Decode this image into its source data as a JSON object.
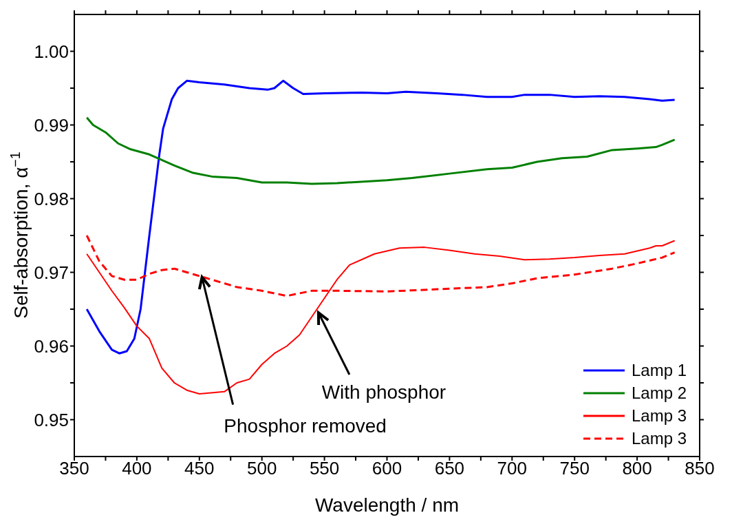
{
  "chart_data": {
    "type": "line",
    "xlabel": "Wavelength / nm",
    "ylabel": "Self-absorption, α$^{−1}$",
    "xlim": [
      350,
      850
    ],
    "xticks": [
      350,
      {
        "value": 375,
        "label": null
      },
      400,
      {
        "value": 425,
        "label": null
      },
      450,
      {
        "value": 475,
        "label": null
      },
      500,
      {
        "value": 525,
        "label": null
      },
      550,
      {
        "value": 575,
        "label": null
      },
      600,
      {
        "value": 625,
        "label": null
      },
      650,
      {
        "value": 675,
        "label": null
      },
      700,
      {
        "value": 725,
        "label": null
      },
      750,
      {
        "value": 775,
        "label": null
      },
      800,
      {
        "value": 825,
        "label": null
      },
      850
    ],
    "ylim": [
      0.945,
      1.005
    ],
    "yticks": [
      {
        "value": 0.95,
        "label": "0.95"
      },
      {
        "value": 0.955,
        "label": null
      },
      {
        "value": 0.96,
        "label": "0.96"
      },
      {
        "value": 0.965,
        "label": null
      },
      {
        "value": 0.97,
        "label": "0.97"
      },
      {
        "value": 0.975,
        "label": null
      },
      {
        "value": 0.98,
        "label": "0.98"
      },
      {
        "value": 0.985,
        "label": null
      },
      {
        "value": 0.99,
        "label": "0.99"
      },
      {
        "value": 0.995,
        "label": null
      },
      {
        "value": 1.0,
        "label": "1.00"
      }
    ],
    "grid": false,
    "legend": "bottom right",
    "marker": "none",
    "series": [
      {
        "name": "Lamp 1",
        "color": "#0000ff",
        "line_style": "solid",
        "x": [
          360,
          370,
          380,
          386,
          392,
          398,
          403,
          410,
          418,
          421,
          428,
          433,
          440,
          450,
          470,
          490,
          505,
          510,
          517,
          525,
          533,
          550,
          580,
          600,
          615,
          640,
          660,
          680,
          700,
          710,
          730,
          750,
          770,
          790,
          810,
          820,
          830
        ],
        "values": [
          0.965,
          0.962,
          0.9595,
          0.959,
          0.9593,
          0.961,
          0.965,
          0.975,
          0.986,
          0.9895,
          0.9935,
          0.995,
          0.996,
          0.9958,
          0.9955,
          0.995,
          0.9948,
          0.995,
          0.996,
          0.995,
          0.9942,
          0.9943,
          0.9944,
          0.9943,
          0.9945,
          0.9943,
          0.9941,
          0.9938,
          0.9938,
          0.9941,
          0.9941,
          0.9938,
          0.9939,
          0.9938,
          0.9935,
          0.9933,
          0.9934
        ]
      },
      {
        "name": "Lamp 2",
        "color": "#008000",
        "line_style": "solid",
        "x": [
          360,
          365,
          375,
          385,
          395,
          410,
          430,
          445,
          460,
          480,
          500,
          520,
          540,
          560,
          600,
          620,
          650,
          680,
          700,
          720,
          740,
          760,
          780,
          800,
          815,
          820,
          830
        ],
        "values": [
          0.991,
          0.99,
          0.989,
          0.9875,
          0.9867,
          0.986,
          0.9845,
          0.9835,
          0.983,
          0.9828,
          0.9822,
          0.9822,
          0.982,
          0.9821,
          0.9825,
          0.9828,
          0.9834,
          0.984,
          0.9842,
          0.985,
          0.9855,
          0.9857,
          0.9866,
          0.9868,
          0.987,
          0.9873,
          0.988
        ]
      },
      {
        "name": "Lamp 3",
        "color": "#ff0000",
        "line_style": "solid",
        "x": [
          360,
          370,
          380,
          390,
          400,
          410,
          420,
          430,
          440,
          450,
          470,
          480,
          490,
          500,
          510,
          520,
          530,
          540,
          550,
          560,
          570,
          590,
          610,
          630,
          650,
          670,
          690,
          710,
          730,
          750,
          770,
          790,
          810,
          815,
          820,
          830
        ],
        "values": [
          0.9725,
          0.97,
          0.9675,
          0.9652,
          0.9627,
          0.961,
          0.957,
          0.955,
          0.954,
          0.9535,
          0.9538,
          0.955,
          0.9555,
          0.9575,
          0.959,
          0.96,
          0.9615,
          0.964,
          0.9665,
          0.969,
          0.971,
          0.9725,
          0.9733,
          0.9734,
          0.973,
          0.9725,
          0.9722,
          0.9717,
          0.9718,
          0.972,
          0.9723,
          0.9725,
          0.9733,
          0.9736,
          0.9736,
          0.9743
        ]
      },
      {
        "name": "Lamp 3",
        "color": "#ff0000",
        "line_style": "dashed",
        "x": [
          360,
          370,
          380,
          390,
          400,
          410,
          420,
          430,
          440,
          460,
          480,
          500,
          520,
          540,
          560,
          600,
          640,
          680,
          700,
          720,
          750,
          780,
          800,
          820,
          830
        ],
        "values": [
          0.975,
          0.9715,
          0.9695,
          0.969,
          0.969,
          0.9698,
          0.9703,
          0.9705,
          0.97,
          0.969,
          0.968,
          0.9675,
          0.9668,
          0.9675,
          0.9675,
          0.9674,
          0.9677,
          0.968,
          0.9685,
          0.9692,
          0.9697,
          0.9705,
          0.9712,
          0.972,
          0.9727
        ]
      }
    ],
    "annotations": [
      {
        "text": "With phosphor",
        "x": 545,
        "y": 0.9645
      },
      {
        "text": "Phosphor removed",
        "x": 452,
        "y": 0.9693
      }
    ]
  }
}
